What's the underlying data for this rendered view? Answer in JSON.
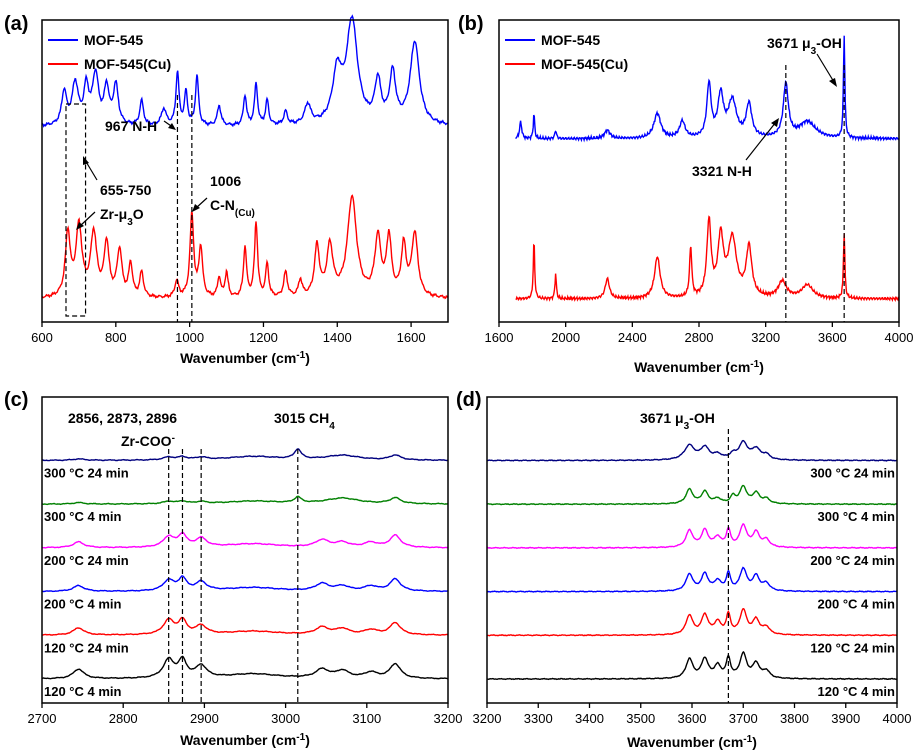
{
  "chart_data": [
    {
      "id": "a",
      "type": "line",
      "panel_label": "(a)",
      "xlabel": "Wavenumber (cm",
      "xlabel_sup": "-1",
      "xlabel_tail": ")",
      "xlim": [
        600,
        1700
      ],
      "xticks": [
        600,
        800,
        1000,
        1200,
        1400,
        1600
      ],
      "ylabel": "",
      "legend": {
        "placement": "top-left",
        "entries": [
          {
            "label": "MOF-545",
            "color": "#0000ff"
          },
          {
            "label": "MOF-545(Cu)",
            "color": "#ff0000"
          }
        ]
      },
      "series": [
        {
          "name": "MOF-545",
          "color": "#0000ff",
          "baseline": 0.62,
          "peaks": [
            [
              660,
              0.2,
              8
            ],
            [
              690,
              0.25,
              10
            ],
            [
              720,
              0.22,
              8
            ],
            [
              745,
              0.3,
              10
            ],
            [
              775,
              0.22,
              8
            ],
            [
              800,
              0.24,
              8
            ],
            [
              870,
              0.15,
              6
            ],
            [
              930,
              0.1,
              8
            ],
            [
              967,
              0.32,
              5
            ],
            [
              990,
              0.2,
              5
            ],
            [
              1020,
              0.3,
              5
            ],
            [
              1080,
              0.12,
              6
            ],
            [
              1150,
              0.18,
              5
            ],
            [
              1180,
              0.25,
              5
            ],
            [
              1210,
              0.15,
              5
            ],
            [
              1260,
              0.08,
              6
            ],
            [
              1320,
              0.12,
              10
            ],
            [
              1400,
              0.3,
              15
            ],
            [
              1440,
              0.62,
              18
            ],
            [
              1510,
              0.25,
              10
            ],
            [
              1550,
              0.3,
              10
            ],
            [
              1610,
              0.5,
              15
            ]
          ]
        },
        {
          "name": "MOF-545(Cu)",
          "color": "#ff0000",
          "baseline": 0.05,
          "peaks": [
            [
              670,
              0.38,
              8
            ],
            [
              700,
              0.42,
              10
            ],
            [
              740,
              0.38,
              10
            ],
            [
              775,
              0.32,
              8
            ],
            [
              810,
              0.28,
              8
            ],
            [
              840,
              0.2,
              6
            ],
            [
              870,
              0.15,
              6
            ],
            [
              965,
              0.1,
              6
            ],
            [
              1006,
              0.5,
              6
            ],
            [
              1030,
              0.3,
              6
            ],
            [
              1080,
              0.12,
              5
            ],
            [
              1100,
              0.15,
              5
            ],
            [
              1150,
              0.3,
              5
            ],
            [
              1180,
              0.45,
              5
            ],
            [
              1210,
              0.2,
              5
            ],
            [
              1260,
              0.15,
              6
            ],
            [
              1300,
              0.1,
              6
            ],
            [
              1345,
              0.3,
              8
            ],
            [
              1380,
              0.3,
              10
            ],
            [
              1440,
              0.6,
              15
            ],
            [
              1510,
              0.35,
              10
            ],
            [
              1540,
              0.35,
              8
            ],
            [
              1580,
              0.3,
              8
            ],
            [
              1610,
              0.38,
              10
            ]
          ]
        }
      ],
      "vlines": [
        967,
        1006
      ],
      "box": {
        "x": [
          665,
          718
        ]
      },
      "annotations": [
        {
          "text": "967 N-H"
        },
        {
          "text": "655-750"
        },
        {
          "text": "Zr-μ",
          "sub": "3",
          "tail": "O"
        },
        {
          "text": "1006"
        },
        {
          "text": "C-N",
          "sub": "(Cu)"
        }
      ]
    },
    {
      "id": "b",
      "type": "line",
      "panel_label": "(b)",
      "xlabel": "Wavenumber (cm",
      "xlabel_sup": "-1",
      "xlabel_tail": ")",
      "xlim": [
        1600,
        4000
      ],
      "xticks": [
        1600,
        2000,
        2400,
        2800,
        3200,
        3600,
        4000
      ],
      "legend": {
        "placement": "top-left",
        "entries": [
          {
            "label": "MOF-545",
            "color": "#0000ff"
          },
          {
            "label": "MOF-545(Cu)",
            "color": "#ff0000"
          }
        ]
      },
      "series": [
        {
          "name": "MOF-545",
          "color": "#0000ff",
          "baseline": 0.58,
          "x_end": 1700,
          "peaks": [
            [
              1730,
              0.1,
              8
            ],
            [
              1810,
              0.15,
              5
            ],
            [
              1940,
              0.05,
              6
            ],
            [
              2250,
              0.05,
              20
            ],
            [
              2550,
              0.15,
              25
            ],
            [
              2700,
              0.1,
              20
            ],
            [
              2860,
              0.32,
              15
            ],
            [
              2930,
              0.25,
              20
            ],
            [
              3000,
              0.22,
              30
            ],
            [
              3100,
              0.2,
              20
            ],
            [
              3321,
              0.32,
              18
            ],
            [
              3450,
              0.1,
              60
            ],
            [
              3671,
              0.62,
              5
            ]
          ]
        },
        {
          "name": "MOF-545(Cu)",
          "color": "#ff0000",
          "baseline": 0.05,
          "x_end": 1700,
          "peaks": [
            [
              1810,
              0.35,
              5
            ],
            [
              1940,
              0.15,
              5
            ],
            [
              2250,
              0.12,
              15
            ],
            [
              2550,
              0.25,
              20
            ],
            [
              2750,
              0.3,
              8
            ],
            [
              2860,
              0.45,
              15
            ],
            [
              2930,
              0.35,
              20
            ],
            [
              3000,
              0.35,
              30
            ],
            [
              3100,
              0.3,
              20
            ],
            [
              3300,
              0.1,
              30
            ],
            [
              3450,
              0.08,
              40
            ],
            [
              3671,
              0.4,
              5
            ]
          ]
        }
      ],
      "vlines": [
        3321,
        3671
      ],
      "annotations": [
        {
          "text": "3671 μ",
          "sub": "3",
          "tail": "-OH"
        },
        {
          "text": "3321 N-H"
        }
      ]
    },
    {
      "id": "c",
      "type": "line",
      "panel_label": "(c)",
      "xlabel": "Wavenumber (cm",
      "xlabel_sup": "-1",
      "xlabel_tail": ")",
      "xlim": [
        2700,
        3200
      ],
      "xticks": [
        2700,
        2800,
        2900,
        3000,
        3100,
        3200
      ],
      "series": [
        {
          "name": "300 °C 24 min",
          "color": "#00007f",
          "offset": 5,
          "peaks": [
            [
              2745,
              0.03,
              8
            ],
            [
              2856,
              0.06,
              8
            ],
            [
              2873,
              0.06,
              6
            ],
            [
              2896,
              0.05,
              8
            ],
            [
              2960,
              0.08,
              40
            ],
            [
              3015,
              0.2,
              5
            ],
            [
              3070,
              0.1,
              25
            ],
            [
              3135,
              0.1,
              8
            ]
          ]
        },
        {
          "name": "300 °C 4 min",
          "color": "#008000",
          "offset": 4,
          "peaks": [
            [
              2745,
              0.03,
              8
            ],
            [
              2856,
              0.05,
              8
            ],
            [
              2873,
              0.05,
              6
            ],
            [
              2896,
              0.04,
              8
            ],
            [
              2960,
              0.06,
              40
            ],
            [
              3015,
              0.12,
              5
            ],
            [
              3070,
              0.12,
              25
            ],
            [
              3135,
              0.12,
              8
            ]
          ]
        },
        {
          "name": "200 °C 24 min",
          "color": "#ff00ff",
          "offset": 3,
          "peaks": [
            [
              2745,
              0.12,
              8
            ],
            [
              2856,
              0.22,
              8
            ],
            [
              2873,
              0.25,
              6
            ],
            [
              2896,
              0.18,
              8
            ],
            [
              2960,
              0.08,
              40
            ],
            [
              3045,
              0.15,
              10
            ],
            [
              3070,
              0.1,
              10
            ],
            [
              3105,
              0.1,
              10
            ],
            [
              3135,
              0.25,
              8
            ]
          ]
        },
        {
          "name": "200 °C 4 min",
          "color": "#0000ff",
          "offset": 2,
          "peaks": [
            [
              2745,
              0.12,
              8
            ],
            [
              2856,
              0.22,
              8
            ],
            [
              2873,
              0.25,
              6
            ],
            [
              2896,
              0.18,
              8
            ],
            [
              2960,
              0.08,
              40
            ],
            [
              3045,
              0.15,
              10
            ],
            [
              3070,
              0.1,
              10
            ],
            [
              3105,
              0.1,
              10
            ],
            [
              3135,
              0.25,
              8
            ]
          ]
        },
        {
          "name": "120 °C 24 min",
          "color": "#ff0000",
          "offset": 1,
          "peaks": [
            [
              2745,
              0.15,
              8
            ],
            [
              2856,
              0.3,
              8
            ],
            [
              2873,
              0.28,
              6
            ],
            [
              2896,
              0.18,
              8
            ],
            [
              2960,
              0.08,
              40
            ],
            [
              3045,
              0.15,
              10
            ],
            [
              3070,
              0.12,
              10
            ],
            [
              3105,
              0.1,
              10
            ],
            [
              3135,
              0.25,
              8
            ]
          ]
        },
        {
          "name": "120 °C 4 min",
          "color": "#000000",
          "offset": 0,
          "peaks": [
            [
              2745,
              0.2,
              8
            ],
            [
              2856,
              0.38,
              8
            ],
            [
              2873,
              0.35,
              6
            ],
            [
              2896,
              0.25,
              8
            ],
            [
              2960,
              0.1,
              40
            ],
            [
              3045,
              0.18,
              10
            ],
            [
              3070,
              0.15,
              10
            ],
            [
              3105,
              0.12,
              10
            ],
            [
              3135,
              0.3,
              8
            ]
          ]
        }
      ],
      "vlines": [
        2856,
        2873,
        2896,
        3015
      ],
      "annotations": [
        {
          "text": "2856, 2873, 2896"
        },
        {
          "text": "Zr-COO",
          "sup": "-"
        },
        {
          "text": "3015 CH",
          "sub": "4"
        }
      ]
    },
    {
      "id": "d",
      "type": "line",
      "panel_label": "(d)",
      "xlabel": "Wavenumber (cm",
      "xlabel_sup": "-1",
      "xlabel_tail": ")",
      "xlim": [
        3200,
        4000
      ],
      "xticks": [
        3200,
        3300,
        3400,
        3500,
        3600,
        3700,
        3800,
        3900,
        4000
      ],
      "series": [
        {
          "name": "300 °C 24 min",
          "color": "#00007f",
          "offset": 5,
          "peaks": [
            [
              3595,
              0.3,
              12
            ],
            [
              3625,
              0.25,
              10
            ],
            [
              3650,
              0.1,
              10
            ],
            [
              3680,
              0.1,
              8
            ],
            [
              3700,
              0.35,
              10
            ],
            [
              3725,
              0.22,
              10
            ],
            [
              3745,
              0.1,
              8
            ]
          ]
        },
        {
          "name": "300 °C 4 min",
          "color": "#008000",
          "offset": 4,
          "peaks": [
            [
              3595,
              0.3,
              8
            ],
            [
              3625,
              0.25,
              8
            ],
            [
              3650,
              0.1,
              8
            ],
            [
              3680,
              0.15,
              6
            ],
            [
              3700,
              0.35,
              8
            ],
            [
              3725,
              0.22,
              8
            ],
            [
              3745,
              0.1,
              8
            ]
          ]
        },
        {
          "name": "200 °C 24 min",
          "color": "#ff00ff",
          "offset": 3,
          "peaks": [
            [
              3595,
              0.35,
              8
            ],
            [
              3625,
              0.35,
              8
            ],
            [
              3650,
              0.2,
              8
            ],
            [
              3671,
              0.35,
              5
            ],
            [
              3700,
              0.45,
              8
            ],
            [
              3725,
              0.3,
              8
            ],
            [
              3745,
              0.15,
              8
            ]
          ]
        },
        {
          "name": "200 °C 4 min",
          "color": "#0000ff",
          "offset": 2,
          "peaks": [
            [
              3595,
              0.35,
              8
            ],
            [
              3625,
              0.35,
              8
            ],
            [
              3650,
              0.2,
              8
            ],
            [
              3671,
              0.35,
              5
            ],
            [
              3700,
              0.45,
              8
            ],
            [
              3725,
              0.3,
              8
            ],
            [
              3745,
              0.15,
              8
            ]
          ]
        },
        {
          "name": "120 °C 24 min",
          "color": "#ff0000",
          "offset": 1,
          "peaks": [
            [
              3595,
              0.4,
              8
            ],
            [
              3625,
              0.4,
              8
            ],
            [
              3650,
              0.25,
              8
            ],
            [
              3671,
              0.4,
              5
            ],
            [
              3700,
              0.5,
              8
            ],
            [
              3725,
              0.3,
              8
            ],
            [
              3745,
              0.15,
              8
            ]
          ]
        },
        {
          "name": "120 °C 4 min",
          "color": "#000000",
          "offset": 0,
          "peaks": [
            [
              3595,
              0.4,
              8
            ],
            [
              3625,
              0.4,
              8
            ],
            [
              3650,
              0.25,
              8
            ],
            [
              3671,
              0.4,
              5
            ],
            [
              3700,
              0.5,
              8
            ],
            [
              3725,
              0.3,
              8
            ],
            [
              3745,
              0.15,
              8
            ]
          ]
        }
      ],
      "vlines": [
        3671
      ],
      "annotations": [
        {
          "text": "3671 μ",
          "sub": "3",
          "tail": "-OH"
        }
      ]
    }
  ]
}
